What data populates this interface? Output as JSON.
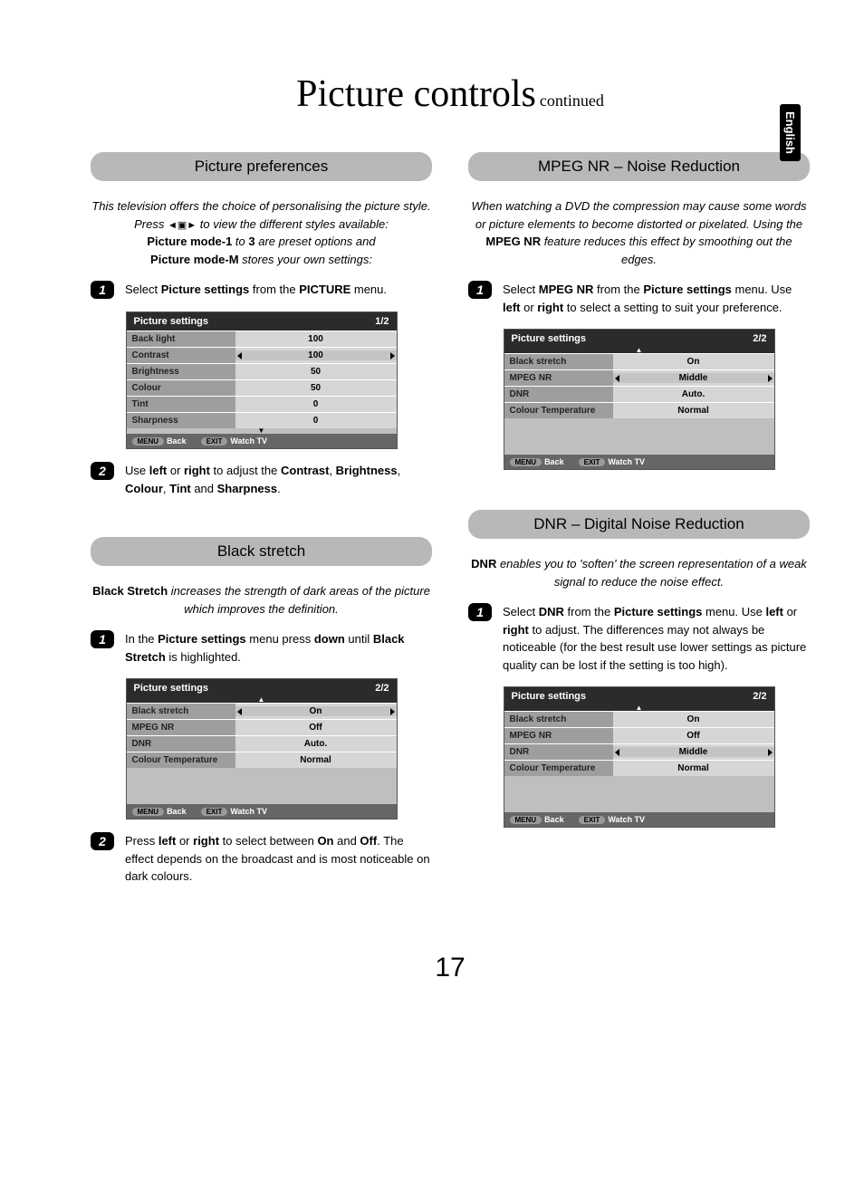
{
  "page": {
    "title_main": "Picture controls",
    "title_sub": "continued",
    "language_tab": "English",
    "page_number": "17"
  },
  "left": {
    "section1": {
      "heading": "Picture preferences",
      "intro_line1": "This television offers the choice of personalising the picture style. Press ",
      "intro_icon": "◄▣►",
      "intro_line2": " to view the different styles available:",
      "intro_line3a": "Picture mode-1",
      "intro_line3b": " to ",
      "intro_line3c": "3",
      "intro_line3d": " are preset options and",
      "intro_line4a": "Picture mode-M",
      "intro_line4b": " stores your own settings:",
      "step1": {
        "pre": "Select ",
        "b1": "Picture settings",
        "mid": " from the ",
        "b2": "PICTURE",
        "post": " menu."
      },
      "osd": {
        "title": "Picture settings",
        "page": "1/2",
        "rows": [
          {
            "label": "Back light",
            "value": "100",
            "arrows": false
          },
          {
            "label": "Contrast",
            "value": "100",
            "arrows": true
          },
          {
            "label": "Brightness",
            "value": "50",
            "arrows": false
          },
          {
            "label": "Colour",
            "value": "50",
            "arrows": false
          },
          {
            "label": "Tint",
            "value": "0",
            "arrows": false
          },
          {
            "label": "Sharpness",
            "value": "0",
            "arrows": false
          }
        ],
        "footer": {
          "menu": "MENU",
          "back": "Back",
          "exit": "EXIT",
          "watch": "Watch TV"
        }
      },
      "step2": {
        "pre": "Use ",
        "b1": "left",
        "mid1": " or ",
        "b2": "right",
        "mid2": " to adjust the ",
        "b3": "Contrast",
        "mid3": ", ",
        "b4": "Brightness",
        "mid4": ", ",
        "b5": "Colour",
        "mid5": ", ",
        "b6": "Tint",
        "mid6": " and ",
        "b7": "Sharpness",
        "post": "."
      }
    },
    "section2": {
      "heading": "Black stretch",
      "intro": {
        "b1": "Black Stretch",
        "rest": " increases the strength of dark areas of the picture which improves the definition."
      },
      "step1": {
        "pre": "In the ",
        "b1": "Picture settings",
        "mid1": " menu press ",
        "b2": "down",
        "mid2": " until ",
        "b3": "Black Stretch",
        "post": " is highlighted."
      },
      "osd": {
        "title": "Picture settings",
        "page": "2/2",
        "rows": [
          {
            "label": "Black stretch",
            "value": "On",
            "arrows": true
          },
          {
            "label": "MPEG NR",
            "value": "Off",
            "arrows": false
          },
          {
            "label": "DNR",
            "value": "Auto.",
            "arrows": false
          },
          {
            "label": "Colour Temperature",
            "value": "Normal",
            "arrows": false
          }
        ],
        "footer": {
          "menu": "MENU",
          "back": "Back",
          "exit": "EXIT",
          "watch": "Watch TV"
        }
      },
      "step2": {
        "pre": "Press ",
        "b1": "left",
        "mid1": " or ",
        "b2": "right",
        "mid2": " to select between ",
        "b3": "On",
        "mid3": " and ",
        "b4": "Off",
        "post": ". The effect depends on the broadcast and is most noticeable on dark colours."
      }
    }
  },
  "right": {
    "section1": {
      "heading": "MPEG NR – Noise Reduction",
      "intro": {
        "line1": "When watching a DVD the compression may cause some words or picture elements to become distorted or pixelated. Using the ",
        "b1": "MPEG NR",
        "line2": " feature reduces this effect by smoothing out the edges."
      },
      "step1": {
        "pre": "Select ",
        "b1": "MPEG NR",
        "mid1": " from the ",
        "b2": "Picture settings",
        "mid2": " menu. Use ",
        "b3": "left",
        "mid3": " or ",
        "b4": "right",
        "post": " to select a setting to suit your preference."
      },
      "osd": {
        "title": "Picture settings",
        "page": "2/2",
        "rows": [
          {
            "label": "Black stretch",
            "value": "On",
            "arrows": false
          },
          {
            "label": "MPEG NR",
            "value": "Middle",
            "arrows": true
          },
          {
            "label": "DNR",
            "value": "Auto.",
            "arrows": false
          },
          {
            "label": "Colour Temperature",
            "value": "Normal",
            "arrows": false
          }
        ],
        "footer": {
          "menu": "MENU",
          "back": "Back",
          "exit": "EXIT",
          "watch": "Watch TV"
        }
      }
    },
    "section2": {
      "heading": "DNR – Digital Noise Reduction",
      "intro": {
        "b1": "DNR",
        "rest": " enables you to 'soften' the screen representation of a weak signal to reduce the noise effect."
      },
      "step1": {
        "pre": "Select ",
        "b1": "DNR",
        "mid1": " from the ",
        "b2": "Picture settings",
        "mid2": " menu. Use ",
        "b3": "left",
        "mid3": " or ",
        "b4": "right",
        "post": " to adjust. The differences may not always be noticeable (for the best result use lower settings as picture quality can be lost if the setting is too high)."
      },
      "osd": {
        "title": "Picture settings",
        "page": "2/2",
        "rows": [
          {
            "label": "Black stretch",
            "value": "On",
            "arrows": false
          },
          {
            "label": "MPEG NR",
            "value": "Off",
            "arrows": false
          },
          {
            "label": "DNR",
            "value": "Middle",
            "arrows": true
          },
          {
            "label": "Colour Temperature",
            "value": "Normal",
            "arrows": false
          }
        ],
        "footer": {
          "menu": "MENU",
          "back": "Back",
          "exit": "EXIT",
          "watch": "Watch TV"
        }
      }
    }
  }
}
